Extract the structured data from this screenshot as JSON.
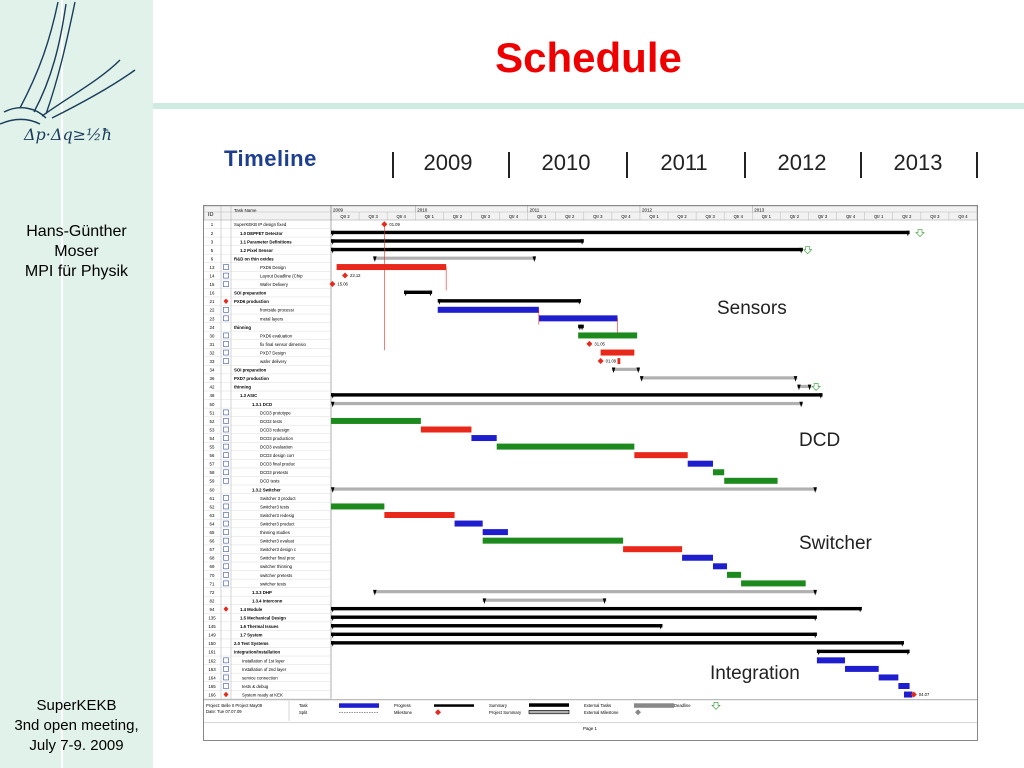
{
  "slide": {
    "title": "Schedule",
    "author": [
      "Hans-Günther",
      "Moser",
      "MPI für Physik"
    ],
    "meeting": [
      "SuperKEKB",
      "3nd open meeting,",
      "July 7-9. 2009"
    ],
    "logo_formula": "Δp·Δq≥½ħ"
  },
  "timeline": {
    "label": "Timeline",
    "years": [
      "2009",
      "2010",
      "2011",
      "2012",
      "2013"
    ]
  },
  "overlays": {
    "sensors": "Sensors",
    "dcd": "DCD",
    "switcher": "Switcher",
    "integration": "Integration"
  },
  "gantt": {
    "header_id": "ID",
    "header_name": "Task Name",
    "header_years": [
      "2009",
      "2010",
      "2011",
      "2012",
      "2013"
    ],
    "quarters": [
      "Qtr 2",
      "Qtr 3",
      "Qtr 4",
      "Qtr 1",
      "Qtr 2",
      "Qtr 3",
      "Qtr 4",
      "Qtr 1",
      "Qtr 2",
      "Qtr 3",
      "Qtr 4",
      "Qtr 1",
      "Qtr 2",
      "Qtr 3",
      "Qtr 4",
      "Qtr 1",
      "Qtr 2",
      "Qtr 3",
      "Qtr 4",
      "Qtr 1",
      "Qtr 2",
      "Qtr 3",
      "Qtr 4"
    ],
    "rows": [
      {
        "id": "1",
        "name": "SuperKEKB IP design fixed",
        "bold": false
      },
      {
        "id": "2",
        "name": "1.0 DEPFET Detector",
        "bold": true
      },
      {
        "id": "3",
        "name": "1.1 Parameter Definitions",
        "bold": true
      },
      {
        "id": "5",
        "name": "1.2 Pixel Sensor",
        "bold": true
      },
      {
        "id": "6",
        "name": "R&D on thin oxides",
        "bold": true
      },
      {
        "id": "13",
        "name": "PXD6 Design",
        "bold": false
      },
      {
        "id": "14",
        "name": "Layout Deadline (Chip",
        "bold": false
      },
      {
        "id": "15",
        "name": "Wafer Delivery",
        "bold": false
      },
      {
        "id": "16",
        "name": "SOI preparation",
        "bold": true
      },
      {
        "id": "21",
        "name": "PXD6 production",
        "bold": true
      },
      {
        "id": "22",
        "name": "frontside processi",
        "bold": false
      },
      {
        "id": "23",
        "name": "metal layers",
        "bold": false
      },
      {
        "id": "24",
        "name": "thinning",
        "bold": true
      },
      {
        "id": "30",
        "name": "PXD6 evaluation",
        "bold": false
      },
      {
        "id": "31",
        "name": "fix final sensor dimensio",
        "bold": false
      },
      {
        "id": "32",
        "name": "PXD7 Design",
        "bold": false
      },
      {
        "id": "33",
        "name": "wafer delivery",
        "bold": false
      },
      {
        "id": "34",
        "name": "SOI preparation",
        "bold": true
      },
      {
        "id": "36",
        "name": "PXD7 production",
        "bold": true
      },
      {
        "id": "42",
        "name": "thinning",
        "bold": true
      },
      {
        "id": "48",
        "name": "1.3 ASIC",
        "bold": true
      },
      {
        "id": "50",
        "name": "1.3.1 DCD",
        "bold": true
      },
      {
        "id": "51",
        "name": "DCD3 prototype",
        "bold": false
      },
      {
        "id": "52",
        "name": "DCD2 tests",
        "bold": false
      },
      {
        "id": "53",
        "name": "DCD3 redesign",
        "bold": false
      },
      {
        "id": "54",
        "name": "DCD3 production",
        "bold": false
      },
      {
        "id": "55",
        "name": "DCD3 evaluation",
        "bold": false
      },
      {
        "id": "56",
        "name": "DCD3 design corr",
        "bold": false
      },
      {
        "id": "57",
        "name": "DCD3 final produc",
        "bold": false
      },
      {
        "id": "58",
        "name": "DCD3 pretests",
        "bold": false
      },
      {
        "id": "59",
        "name": "DCD tests",
        "bold": false
      },
      {
        "id": "60",
        "name": "1.3.2 Switcher",
        "bold": true
      },
      {
        "id": "61",
        "name": "Switcher 3 product",
        "bold": false
      },
      {
        "id": "62",
        "name": "Switcher3 tests",
        "bold": false
      },
      {
        "id": "63",
        "name": "Switcher3 redesig",
        "bold": false
      },
      {
        "id": "64",
        "name": "Switcher3 product",
        "bold": false
      },
      {
        "id": "65",
        "name": "thinning studies",
        "bold": false
      },
      {
        "id": "66",
        "name": "Switcher3 evaluat",
        "bold": false
      },
      {
        "id": "67",
        "name": "Switcher3 design c",
        "bold": false
      },
      {
        "id": "68",
        "name": "Switcher final proc",
        "bold": false
      },
      {
        "id": "69",
        "name": "switcher thinning",
        "bold": false
      },
      {
        "id": "70",
        "name": "switcher pretests",
        "bold": false
      },
      {
        "id": "71",
        "name": "switcher tests",
        "bold": false
      },
      {
        "id": "72",
        "name": "1.3.3 DHP",
        "bold": true
      },
      {
        "id": "82",
        "name": "1.3.4 Interconn",
        "bold": true
      },
      {
        "id": "94",
        "name": "1.4 Module",
        "bold": true
      },
      {
        "id": "135",
        "name": "1.5 Mechanical Design",
        "bold": true
      },
      {
        "id": "145",
        "name": "1.6 Thermal Issues",
        "bold": true
      },
      {
        "id": "149",
        "name": "1.7 System",
        "bold": true
      },
      {
        "id": "150",
        "name": "2.0 Test Systems",
        "bold": true
      },
      {
        "id": "161",
        "name": "Integration/Installation",
        "bold": true
      },
      {
        "id": "162",
        "name": "Installation of 1st layer",
        "bold": false
      },
      {
        "id": "163",
        "name": "Installation of 2nd layer",
        "bold": false
      },
      {
        "id": "164",
        "name": "service connection",
        "bold": false
      },
      {
        "id": "165",
        "name": "tests & debug",
        "bold": false
      },
      {
        "id": "166",
        "name": "System ready at KEK",
        "bold": false
      }
    ],
    "milestones": [
      "01.09",
      "23.12",
      "15.06",
      "31.05",
      "01.09",
      "04.07"
    ],
    "legend": {
      "project": "Project: Belle II Project May09",
      "date": "Date: Tue 07.07.09",
      "task": "Task",
      "split": "Split",
      "progress": "Progress",
      "milestone": "Milestone",
      "summary": "Summary",
      "project_summary": "Project Summary",
      "external_tasks": "External Tasks",
      "external_milestone": "External Milestone",
      "deadline": "Deadline"
    },
    "footer": "Page 1"
  },
  "colors": {
    "title": "#ee0000",
    "timeline_label": "#1e3f8f",
    "sidebar": "#e0f2ea",
    "red_bar": "#e8281a",
    "blue_bar": "#1e1ecf",
    "green_bar": "#1c8a1c",
    "summary_bar": "#000000",
    "gray_bar": "#b0b0b0"
  }
}
